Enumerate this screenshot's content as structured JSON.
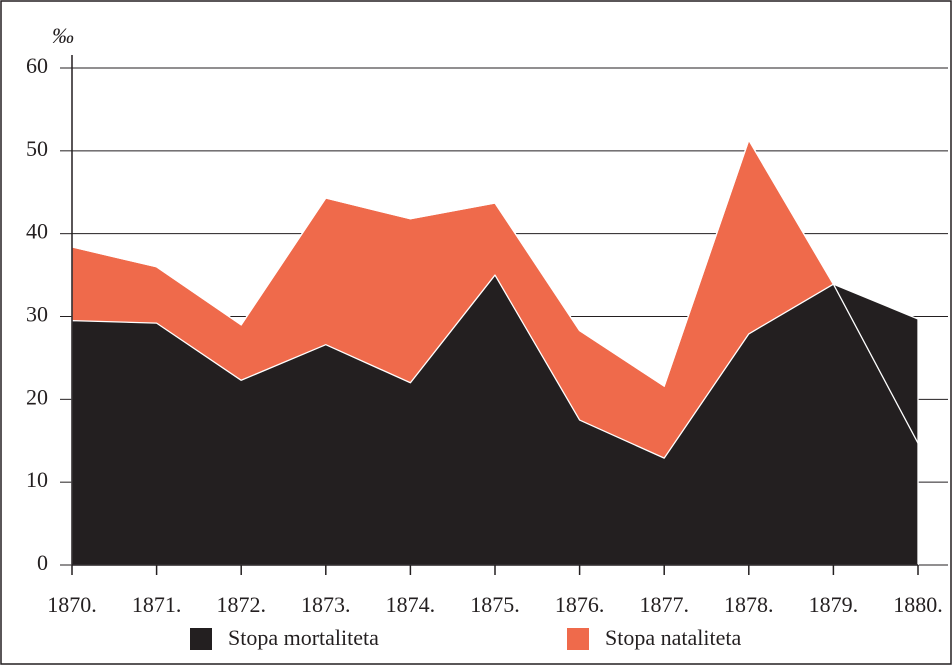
{
  "chart_data": {
    "type": "area",
    "y_label": "‰",
    "categories": [
      "1870.",
      "1871.",
      "1872.",
      "1873.",
      "1874.",
      "1875.",
      "1876.",
      "1877.",
      "1878.",
      "1879.",
      "1880."
    ],
    "series": [
      {
        "name": "Stopa mortaliteta",
        "color": "#231f20",
        "values": [
          29.5,
          29.2,
          22.3,
          26.6,
          22.0,
          35.0,
          17.5,
          12.9,
          27.9,
          33.9,
          29.7
        ]
      },
      {
        "name": "Stopa nataliteta",
        "color": "#ef6a4b",
        "values": [
          38.4,
          36.0,
          29.0,
          44.3,
          41.8,
          43.7,
          28.3,
          21.6,
          51.3,
          33.9,
          14.7
        ]
      }
    ],
    "ylim": [
      0,
      60
    ],
    "yticks": [
      0,
      10,
      20,
      30,
      40,
      50,
      60
    ],
    "grid": true
  }
}
